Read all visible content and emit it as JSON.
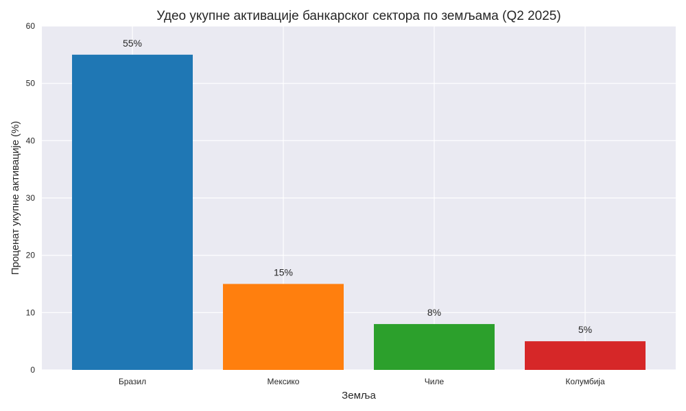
{
  "chart_data": {
    "type": "bar",
    "title": "Удео укупне активације банкарског сектора по земљама (Q2 2025)",
    "xlabel": "Земља",
    "ylabel": "Проценат укупне активације (%)",
    "categories": [
      "Бразил",
      "Мексико",
      "Чиле",
      "Колумбија"
    ],
    "values": [
      55,
      15,
      8,
      5
    ],
    "value_labels": [
      "55%",
      "15%",
      "8%",
      "5%"
    ],
    "colors": [
      "#1f77b4",
      "#ff7f0e",
      "#2ca02c",
      "#d62728"
    ],
    "ylim": [
      0,
      60
    ],
    "yticks": [
      0,
      10,
      20,
      30,
      40,
      50,
      60
    ],
    "grid": true,
    "style": {
      "plot_background": "#eaeaf2",
      "grid_color": "#ffffff"
    }
  }
}
